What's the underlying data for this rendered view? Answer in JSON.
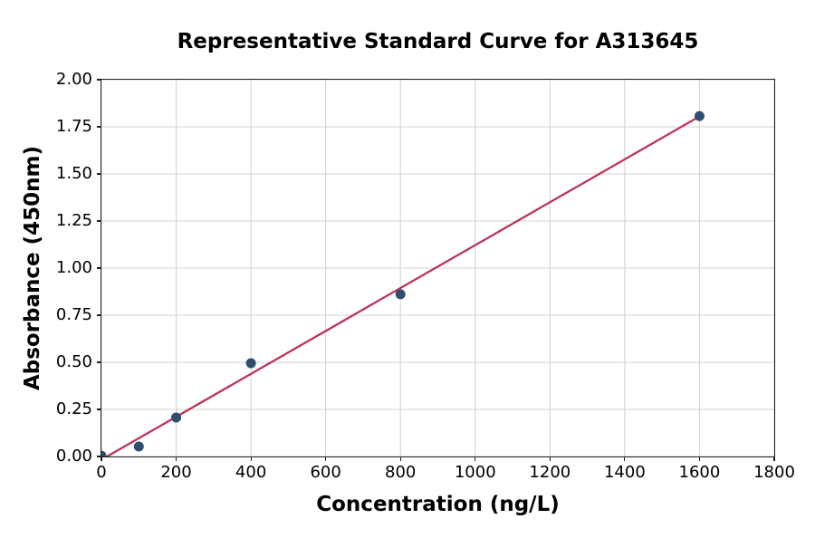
{
  "chart_data": {
    "type": "scatter",
    "title": "Representative Standard Curve for A313645",
    "xlabel": "Concentration (ng/L)",
    "ylabel": "Absorbance (450nm)",
    "xlim": [
      0,
      1800
    ],
    "ylim": [
      0,
      2.0
    ],
    "xtick_labels": [
      "0",
      "200",
      "400",
      "600",
      "800",
      "1000",
      "1200",
      "1400",
      "1600",
      "1800"
    ],
    "ytick_labels": [
      "0.00",
      "0.25",
      "0.50",
      "0.75",
      "1.00",
      "1.25",
      "1.50",
      "1.75",
      "2.00"
    ],
    "grid": true,
    "legend": "none",
    "points": [
      {
        "x": 0,
        "y": 0.004
      },
      {
        "x": 100,
        "y": 0.053
      },
      {
        "x": 200,
        "y": 0.207
      },
      {
        "x": 400,
        "y": 0.495
      },
      {
        "x": 800,
        "y": 0.861
      },
      {
        "x": 1600,
        "y": 1.807
      }
    ],
    "fit_line": {
      "x1": 15,
      "y1": 0.0,
      "x2": 1600,
      "y2": 1.805
    },
    "colors": {
      "point": "#2f4d6e",
      "line": "#bd3458",
      "grid": "#d3d3d3",
      "spine": "#1f1f1f",
      "text": "#000000",
      "background": "#ffffff"
    }
  }
}
